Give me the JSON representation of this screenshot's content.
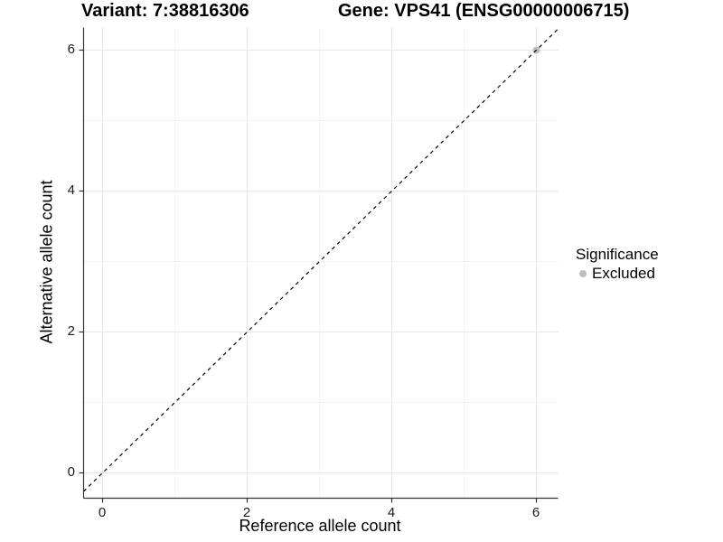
{
  "chart_data": {
    "type": "scatter",
    "titles": {
      "left": "Variant: 7:38816306",
      "right": "Gene: VPS41 (ENSG00000006715)"
    },
    "xlabel": "Reference allele count",
    "ylabel": "Alternative allele count",
    "xlim": [
      -0.2625,
      6.3
    ],
    "ylim": [
      -0.359,
      6.32
    ],
    "xticks": {
      "values": [
        0,
        2,
        4,
        6
      ],
      "labels": [
        "0",
        "2",
        "4",
        "6"
      ]
    },
    "yticks": {
      "values": [
        0,
        2,
        4,
        6
      ],
      "labels": [
        "0",
        "2",
        "4",
        "6"
      ]
    },
    "x_minor": [
      1,
      3,
      5
    ],
    "y_minor": [
      1,
      3,
      5
    ],
    "grid": true,
    "legend_position": "right",
    "reference_line": {
      "slope": 1,
      "intercept": 0,
      "linestyle": "dashed",
      "color": "#000000"
    },
    "series": [
      {
        "name": "Excluded",
        "color": "#bebebe",
        "points": [
          [
            6,
            6
          ]
        ]
      }
    ],
    "legend": {
      "title": "Significance",
      "items": [
        {
          "label": "Excluded",
          "color": "#bebebe"
        }
      ]
    }
  },
  "style": {
    "background": "#ffffff",
    "grid_major_color": "#e7e7e7",
    "grid_minor_color": "#f3f3f3",
    "axis_line_color": "#333333",
    "tick_color": "#333333",
    "text_color": "#000000",
    "point_radius": 4
  }
}
